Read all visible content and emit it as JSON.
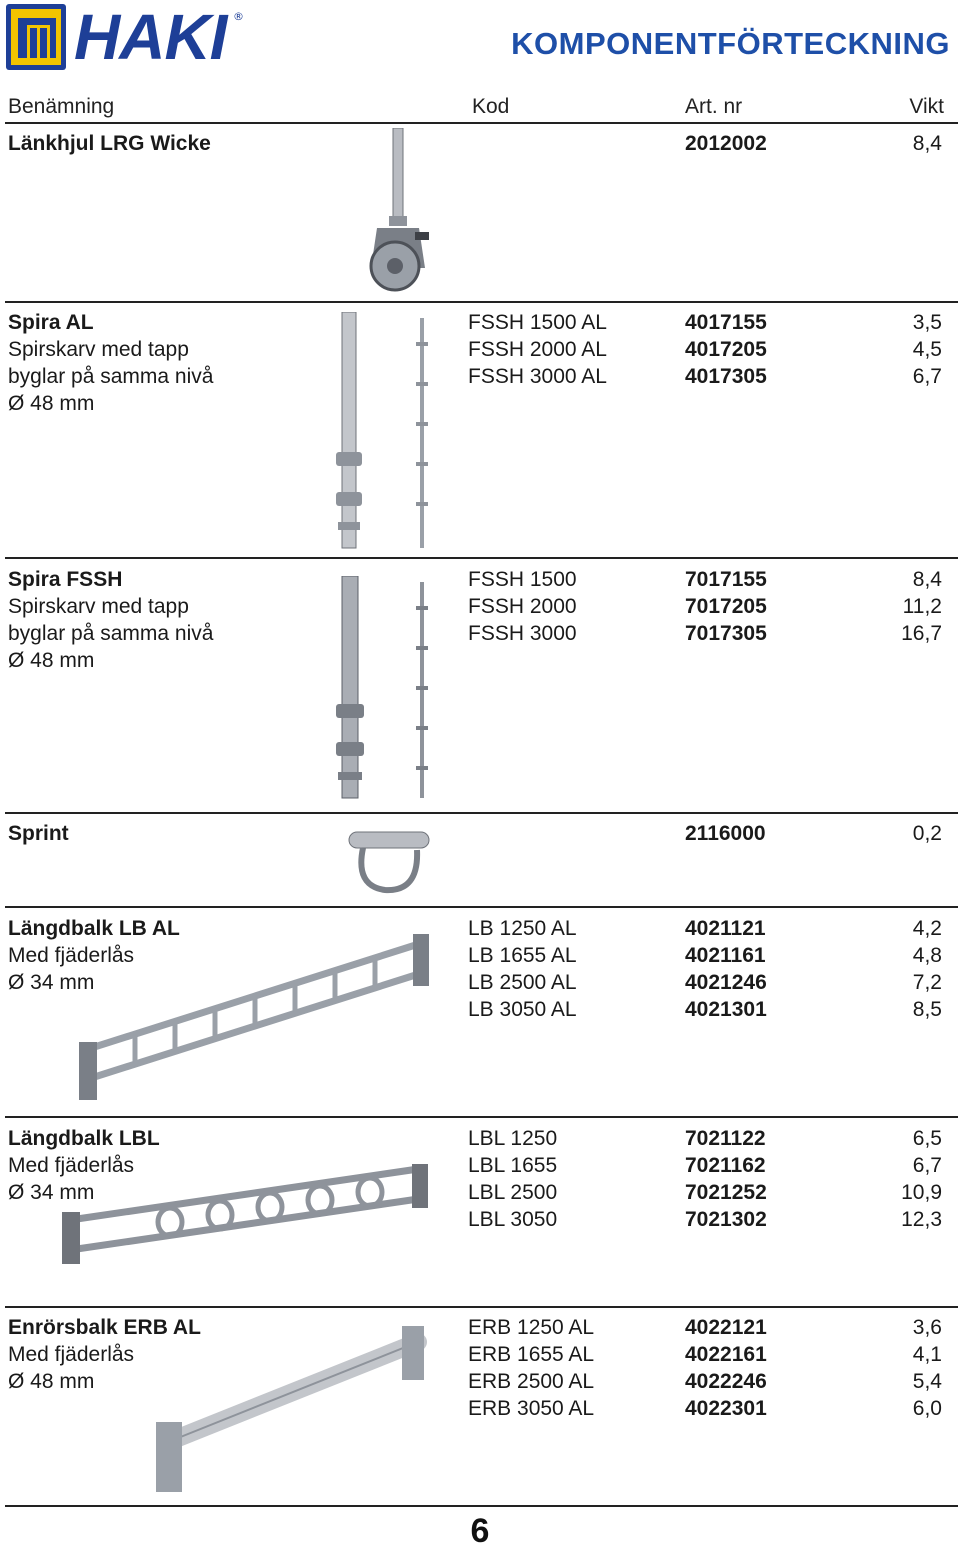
{
  "header": {
    "brand": "HAKI",
    "reg_mark": "®",
    "title": "KOMPONENTFÖRTECKNING"
  },
  "columns": {
    "name": "Benämning",
    "code": "Kod",
    "art": "Art. nr",
    "weight": "Vikt"
  },
  "items": [
    {
      "title": "Länkhjul LRG Wicke",
      "lines": [],
      "codes": [],
      "art_nos": [
        "2012002"
      ],
      "weights": [
        "8,4"
      ],
      "image": "caster-wheel"
    },
    {
      "title": "Spira AL",
      "lines": [
        "Spirskarv med tapp",
        "byglar på samma nivå",
        "Ø 48 mm"
      ],
      "codes": [
        "FSSH 1500 AL",
        "FSSH 2000 AL",
        "FSSH 3000 AL"
      ],
      "art_nos": [
        "4017155",
        "4017205",
        "4017305"
      ],
      "weights": [
        "3,5",
        "4,5",
        "6,7"
      ],
      "image": "standard-pole"
    },
    {
      "title": "Spira FSSH",
      "lines": [
        "Spirskarv med tapp",
        "byglar på samma nivå",
        "Ø 48 mm"
      ],
      "codes": [
        "FSSH 1500",
        "FSSH 2000",
        "FSSH 3000"
      ],
      "art_nos": [
        "7017155",
        "7017205",
        "7017305"
      ],
      "weights": [
        "8,4",
        "11,2",
        "16,7"
      ],
      "image": "standard-pole"
    },
    {
      "title": "Sprint",
      "lines": [],
      "codes": [],
      "art_nos": [
        "2116000"
      ],
      "weights": [
        "0,2"
      ],
      "image": "pin"
    },
    {
      "title": "Längdbalk  LB AL",
      "lines": [
        "Med fjäderlås",
        "Ø 34 mm"
      ],
      "codes": [
        "LB 1250 AL",
        "LB 1655 AL",
        "LB 2500 AL",
        "LB 3050 AL"
      ],
      "art_nos": [
        "4021121",
        "4021161",
        "4021246",
        "4021301"
      ],
      "weights": [
        "4,2",
        "4,8",
        "7,2",
        "8,5"
      ],
      "image": "ledger-beam"
    },
    {
      "title": "Längdbalk  LBL",
      "lines": [
        "Med fjäderlås",
        "Ø 34 mm"
      ],
      "codes": [
        "LBL 1250",
        "LBL 1655",
        "LBL 2500",
        "LBL 3050"
      ],
      "art_nos": [
        "7021122",
        "7021162",
        "7021252",
        "7021302"
      ],
      "weights": [
        "6,5",
        "6,7",
        "10,9",
        "12,3"
      ],
      "image": "ledger-beam-lbl"
    },
    {
      "title": "Enrörsbalk  ERB AL",
      "lines": [
        "Med fjäderlås",
        "Ø 48 mm"
      ],
      "codes": [
        "ERB 1250 AL",
        "ERB 1655 AL",
        "ERB 2500 AL",
        "ERB 3050 AL"
      ],
      "art_nos": [
        "4022121",
        "4022161",
        "4022246",
        "4022301"
      ],
      "weights": [
        "3,6",
        "4,1",
        "5,4",
        "6,0"
      ],
      "image": "single-tube-beam"
    }
  ],
  "page_number": "6",
  "colors": {
    "brand_blue": "#1e3f97",
    "logo_yellow": "#f2c400",
    "rule": "#222222",
    "metal": "#b9bcc2"
  }
}
